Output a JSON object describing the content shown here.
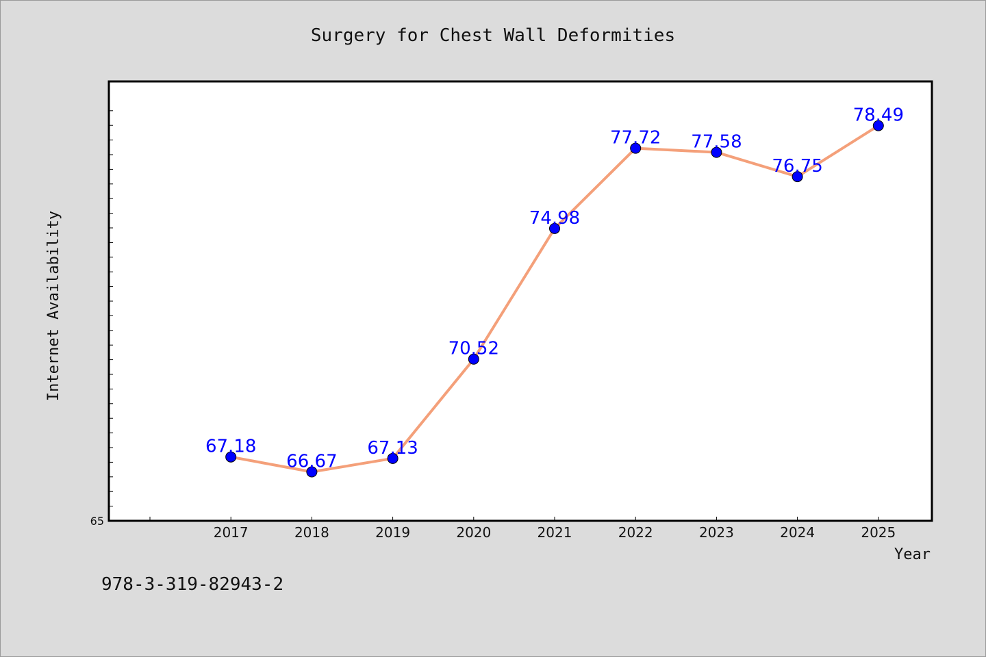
{
  "chart_data": {
    "type": "line",
    "title": "Surgery for Chest Wall Deformities",
    "xlabel": "Year",
    "ylabel": "Internet Availability",
    "categories": [
      "2017",
      "2018",
      "2019",
      "2020",
      "2021",
      "2022",
      "2023",
      "2024",
      "2025"
    ],
    "series": [
      {
        "values": [
          67.18,
          66.67,
          67.13,
          70.52,
          74.98,
          77.72,
          77.58,
          76.75,
          78.49
        ]
      }
    ],
    "ylim": [
      65,
      80
    ],
    "y_tick_labels": [
      "65"
    ],
    "grid": false,
    "line_color": "#f4a07a",
    "marker_color": "#0000ff",
    "label_color": "#0000ff"
  },
  "footer": {
    "code": "978-3-319-82943-2"
  }
}
